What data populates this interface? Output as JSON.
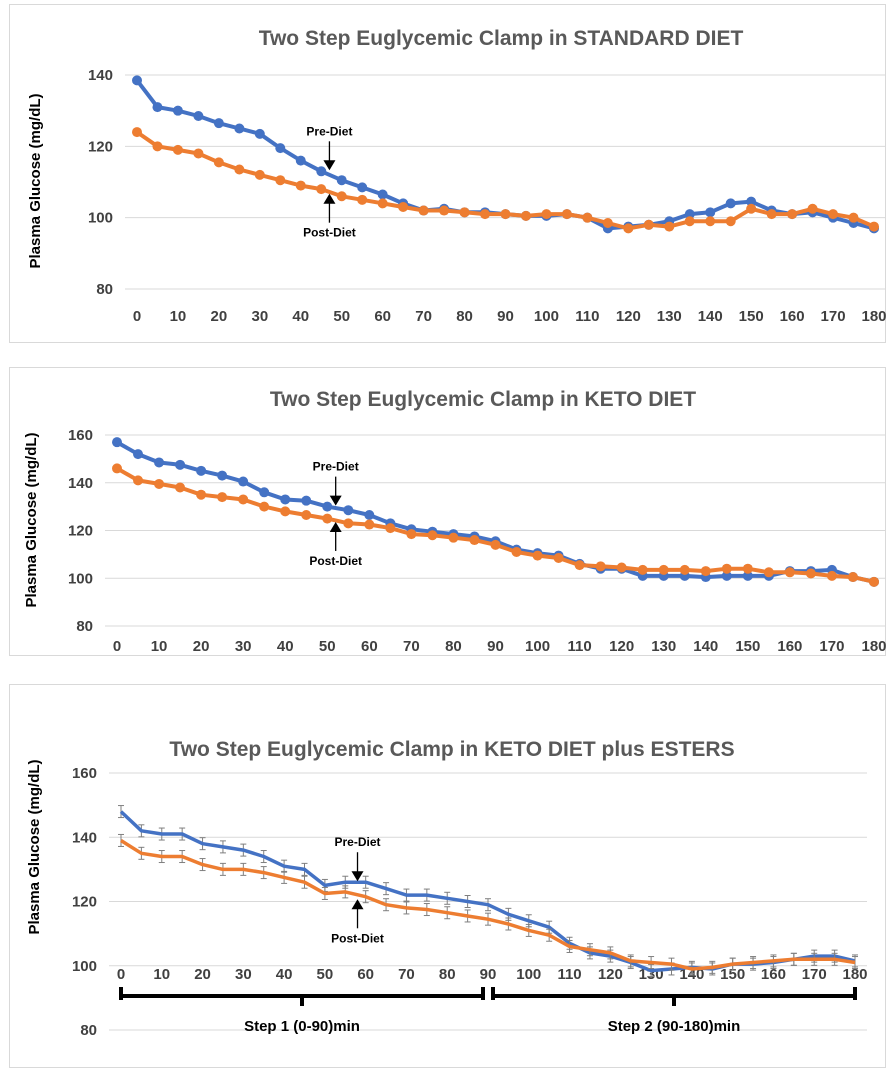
{
  "chart_data": [
    {
      "type": "line",
      "title": "Two Step Euglycemic Clamp in STANDARD DIET",
      "ylabel": "Plasma Glucose (mg/dL)",
      "ylim": [
        80,
        140
      ],
      "yticks": [
        80,
        100,
        120,
        140
      ],
      "x": [
        0,
        5,
        10,
        15,
        20,
        25,
        30,
        35,
        40,
        45,
        50,
        55,
        60,
        65,
        70,
        75,
        80,
        85,
        90,
        95,
        100,
        105,
        110,
        115,
        120,
        125,
        130,
        135,
        140,
        145,
        150,
        155,
        160,
        165,
        170,
        175,
        180
      ],
      "xticks": [
        0,
        10,
        20,
        30,
        40,
        50,
        60,
        70,
        80,
        90,
        100,
        110,
        120,
        130,
        140,
        150,
        160,
        170,
        180
      ],
      "grid": true,
      "series": [
        {
          "color": "#4472c4",
          "values": [
            138.5,
            131,
            130,
            128.5,
            126.5,
            125,
            123.5,
            119.5,
            116,
            113,
            110.5,
            108.5,
            106.5,
            104,
            102,
            102.5,
            101.5,
            101.5,
            101,
            100.5,
            100.5,
            101,
            100,
            97,
            97.5,
            98,
            99,
            101,
            101.5,
            104,
            104.5,
            102,
            101,
            101.5,
            100,
            98.5,
            97
          ]
        },
        {
          "color": "#ed7d31",
          "values": [
            124,
            120,
            119,
            118,
            115.5,
            113.5,
            112,
            110.5,
            109,
            108,
            106,
            105,
            104,
            103,
            102,
            102,
            101.5,
            101,
            101,
            100.5,
            101,
            101,
            100,
            98.5,
            97,
            98,
            97.5,
            99,
            99,
            99,
            102.5,
            101,
            101,
            102.5,
            101,
            100,
            97.5
          ]
        }
      ],
      "annotations": [
        {
          "text": "Pre-Diet",
          "x": 47,
          "y": 113
        },
        {
          "text": "Post-Diet",
          "x": 47,
          "y": 107
        }
      ]
    },
    {
      "type": "line",
      "title": "Two Step Euglycemic Clamp in KETO DIET",
      "ylabel": "Plasma Glucose (mg/dL)",
      "ylim": [
        80,
        160
      ],
      "yticks": [
        80,
        100,
        120,
        140,
        160
      ],
      "x": [
        0,
        5,
        10,
        15,
        20,
        25,
        30,
        35,
        40,
        45,
        50,
        55,
        60,
        65,
        70,
        75,
        80,
        85,
        90,
        95,
        100,
        105,
        110,
        115,
        120,
        125,
        130,
        135,
        140,
        145,
        150,
        155,
        160,
        165,
        170,
        175,
        180
      ],
      "xticks": [
        0,
        10,
        20,
        30,
        40,
        50,
        60,
        70,
        80,
        90,
        100,
        110,
        120,
        130,
        140,
        150,
        160,
        170,
        180
      ],
      "grid": true,
      "series": [
        {
          "color": "#4472c4",
          "values": [
            157,
            152,
            148.5,
            147.5,
            145,
            143,
            140.5,
            136,
            133,
            132.5,
            130,
            128.5,
            126.5,
            123,
            120.5,
            119.5,
            118.5,
            117.5,
            115.5,
            112,
            110.5,
            109.5,
            106,
            104,
            104,
            101,
            101,
            101,
            100.5,
            101,
            101,
            101,
            103,
            103,
            103.5,
            100.5,
            98.5
          ]
        },
        {
          "color": "#ed7d31",
          "values": [
            146,
            141,
            139.5,
            138,
            135,
            134,
            133,
            130,
            128,
            126.5,
            125,
            123,
            122.5,
            121,
            118.5,
            118,
            117,
            116,
            114,
            111,
            109.5,
            108.5,
            105.5,
            105,
            104.5,
            103.5,
            103.5,
            103.5,
            103,
            104,
            104,
            102.5,
            102.5,
            102,
            101,
            100.5,
            98.5
          ]
        }
      ],
      "annotations": [
        {
          "text": "Pre-Diet",
          "x": 52,
          "y": 130
        },
        {
          "text": "Post-Diet",
          "x": 52,
          "y": 124
        }
      ]
    },
    {
      "type": "line",
      "title": "Two Step Euglycemic Clamp in KETO DIET plus ESTERS",
      "ylabel": "Plasma Glucose (mg/dL)",
      "ylim": [
        80,
        160
      ],
      "yticks": [
        80,
        100,
        120,
        140,
        160
      ],
      "x": [
        0,
        5,
        10,
        15,
        20,
        25,
        30,
        35,
        40,
        45,
        50,
        55,
        60,
        65,
        70,
        75,
        80,
        85,
        90,
        95,
        100,
        105,
        110,
        115,
        120,
        125,
        130,
        135,
        140,
        145,
        150,
        155,
        160,
        165,
        170,
        175,
        180
      ],
      "xticks": [
        0,
        10,
        20,
        30,
        40,
        50,
        60,
        70,
        80,
        90,
        100,
        110,
        120,
        130,
        140,
        150,
        160,
        170,
        180
      ],
      "grid": true,
      "series": [
        {
          "color": "#4472c4",
          "values": [
            148,
            142,
            141,
            141,
            138,
            137,
            136,
            134,
            131,
            130,
            125,
            126,
            126,
            124,
            122,
            122,
            121,
            120,
            119,
            116,
            114,
            112,
            107,
            104,
            103,
            101,
            98.5,
            99,
            99.5,
            99,
            100.5,
            100.5,
            101,
            102,
            103,
            103,
            101.5
          ]
        },
        {
          "color": "#ed7d31",
          "values": [
            139,
            135,
            134,
            134,
            131.5,
            130,
            130,
            129,
            127.5,
            126,
            122.5,
            123,
            121.5,
            119,
            118,
            117.5,
            116.5,
            115.5,
            114.5,
            113,
            111,
            109.5,
            106,
            105,
            104,
            101.5,
            101,
            100.5,
            99,
            99.5,
            100.5,
            101,
            101.5,
            102,
            102,
            102,
            101
          ]
        }
      ],
      "annotations": [
        {
          "text": "Pre-Diet",
          "x": 58,
          "y": 126
        },
        {
          "text": "Post-Diet",
          "x": 58,
          "y": 121
        }
      ],
      "steps": [
        {
          "label": "Step 1 (0-90)min",
          "range": [
            0,
            90
          ]
        },
        {
          "label": "Step 2 (90-180)min",
          "range": [
            90,
            180
          ]
        }
      ]
    }
  ]
}
